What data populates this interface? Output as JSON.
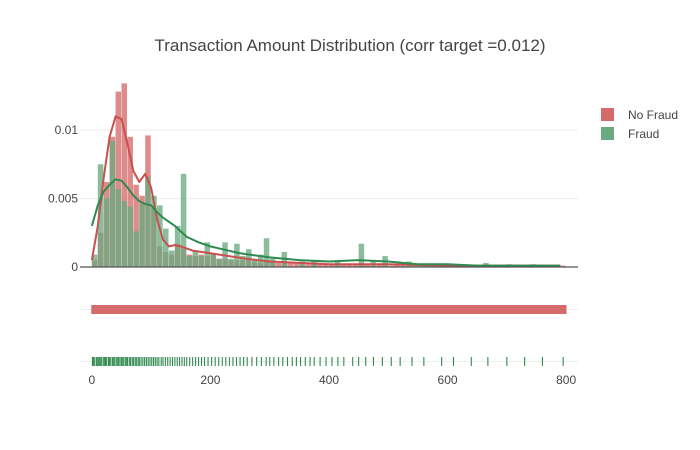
{
  "chart_data": {
    "type": "histogram",
    "title": "Transaction Amount Distribution (corr target =0.012)",
    "xlabel": "",
    "ylabel": "",
    "xlim": [
      -20,
      820
    ],
    "ylim": [
      0,
      0.0135
    ],
    "x_ticks": [
      0,
      200,
      400,
      600,
      800
    ],
    "x_tick_labels": [
      "0",
      "200",
      "400",
      "600",
      "800"
    ],
    "y_ticks": [
      0,
      0.005,
      0.01
    ],
    "y_tick_labels": [
      "0",
      "0.005",
      "0.01"
    ],
    "grid": true,
    "legend_position": "top-right",
    "bin_width": 10,
    "series": [
      {
        "name": "No Fraud",
        "color": "#d46a6a",
        "bins": [
          [
            0,
            0.0005
          ],
          [
            10,
            0.0025
          ],
          [
            20,
            0.0062
          ],
          [
            30,
            0.0095
          ],
          [
            40,
            0.0128
          ],
          [
            50,
            0.0134
          ],
          [
            60,
            0.0095
          ],
          [
            70,
            0.006
          ],
          [
            80,
            0.0052
          ],
          [
            90,
            0.0096
          ],
          [
            100,
            0.0043
          ],
          [
            110,
            0.0015
          ],
          [
            120,
            0.0011
          ],
          [
            130,
            0.0009
          ],
          [
            140,
            0.0017
          ],
          [
            150,
            0.0014
          ],
          [
            160,
            0.0009
          ],
          [
            170,
            0.0008
          ],
          [
            180,
            0.0009
          ],
          [
            190,
            0.0008
          ],
          [
            200,
            0.001
          ],
          [
            210,
            0.0006
          ],
          [
            220,
            0.0006
          ],
          [
            230,
            0.0005
          ],
          [
            240,
            0.0005
          ],
          [
            250,
            0.0005
          ],
          [
            260,
            0.0006
          ],
          [
            270,
            0.0004
          ],
          [
            280,
            0.0003
          ],
          [
            290,
            0.0005
          ],
          [
            300,
            0.0004
          ],
          [
            310,
            0.0003
          ],
          [
            320,
            0.0003
          ],
          [
            330,
            0.0003
          ],
          [
            340,
            0.0003
          ],
          [
            350,
            0.0003
          ],
          [
            360,
            0.0002
          ],
          [
            370,
            0.0002
          ],
          [
            380,
            0.0003
          ],
          [
            390,
            0.0002
          ],
          [
            400,
            0.0002
          ],
          [
            410,
            0.0002
          ],
          [
            420,
            0.0002
          ],
          [
            430,
            0.0002
          ],
          [
            440,
            0.0002
          ],
          [
            450,
            0.0002
          ],
          [
            460,
            0.0002
          ],
          [
            470,
            0.0001
          ],
          [
            480,
            0.0002
          ],
          [
            490,
            0.0002
          ],
          [
            500,
            0.0001
          ],
          [
            510,
            0.0002
          ],
          [
            520,
            0.0001
          ],
          [
            530,
            0.0001
          ],
          [
            540,
            0.0001
          ],
          [
            550,
            0.0001
          ],
          [
            560,
            0.0001
          ],
          [
            570,
            0.0001
          ],
          [
            580,
            0.0001
          ],
          [
            590,
            0.0001
          ],
          [
            600,
            0.0001
          ],
          [
            610,
            0.0001
          ],
          [
            620,
            0.0001
          ],
          [
            630,
            0.0001
          ],
          [
            640,
            0.0001
          ],
          [
            650,
            0.0001
          ],
          [
            660,
            0.0001
          ],
          [
            670,
            0.0001
          ],
          [
            680,
            0.0001
          ],
          [
            690,
            0.0001
          ],
          [
            700,
            0.0001
          ],
          [
            710,
            0.0001
          ],
          [
            720,
            0.0001
          ],
          [
            730,
            0.0001
          ],
          [
            740,
            0.0001
          ],
          [
            750,
            0.0001
          ],
          [
            760,
            0.0001
          ],
          [
            770,
            0.0001
          ],
          [
            780,
            0.0001
          ],
          [
            790,
            0.0001
          ]
        ],
        "kde": [
          [
            0,
            0.0005
          ],
          [
            10,
            0.003
          ],
          [
            20,
            0.0065
          ],
          [
            30,
            0.0095
          ],
          [
            40,
            0.011
          ],
          [
            50,
            0.0108
          ],
          [
            60,
            0.009
          ],
          [
            70,
            0.007
          ],
          [
            80,
            0.0062
          ],
          [
            90,
            0.0068
          ],
          [
            100,
            0.0058
          ],
          [
            110,
            0.0035
          ],
          [
            120,
            0.002
          ],
          [
            130,
            0.0015
          ],
          [
            140,
            0.0016
          ],
          [
            150,
            0.0015
          ],
          [
            170,
            0.0012
          ],
          [
            200,
            0.001
          ],
          [
            230,
            0.0008
          ],
          [
            260,
            0.0006
          ],
          [
            300,
            0.0004
          ],
          [
            350,
            0.0003
          ],
          [
            400,
            0.0002
          ],
          [
            500,
            0.0002
          ],
          [
            600,
            0.0001
          ],
          [
            700,
            0.0001
          ],
          [
            790,
            0.0001
          ]
        ]
      },
      {
        "name": "Fraud",
        "color": "#6aaa80",
        "bins": [
          [
            0,
            0.0009
          ],
          [
            10,
            0.0075
          ],
          [
            20,
            0.005
          ],
          [
            30,
            0.0092
          ],
          [
            40,
            0.0057
          ],
          [
            50,
            0.0048
          ],
          [
            60,
            0.0044
          ],
          [
            70,
            0.0026
          ],
          [
            80,
            0.0046
          ],
          [
            90,
            0.0066
          ],
          [
            100,
            0.0052
          ],
          [
            110,
            0.0045
          ],
          [
            120,
            0.0028
          ],
          [
            130,
            0.0012
          ],
          [
            140,
            0.003
          ],
          [
            150,
            0.0068
          ],
          [
            160,
            0.0008
          ],
          [
            170,
            0.0012
          ],
          [
            180,
            0.0008
          ],
          [
            190,
            0.0018
          ],
          [
            200,
            0.001
          ],
          [
            210,
            0.0006
          ],
          [
            220,
            0.0018
          ],
          [
            230,
            0.0006
          ],
          [
            240,
            0.0017
          ],
          [
            250,
            0.0008
          ],
          [
            260,
            0.0013
          ],
          [
            270,
            0.0006
          ],
          [
            280,
            0.0009
          ],
          [
            290,
            0.0021
          ],
          [
            300,
            0.0006
          ],
          [
            320,
            0.0011
          ],
          [
            350,
            0.0004
          ],
          [
            370,
            0.0004
          ],
          [
            410,
            0.0004
          ],
          [
            450,
            0.0017
          ],
          [
            470,
            0.0004
          ],
          [
            490,
            0.0008
          ],
          [
            530,
            0.0004
          ],
          [
            560,
            0.0002
          ],
          [
            610,
            0.0002
          ],
          [
            660,
            0.0003
          ],
          [
            700,
            0.0002
          ],
          [
            740,
            0.0002
          ],
          [
            780,
            0.0001
          ]
        ],
        "kde": [
          [
            0,
            0.003
          ],
          [
            10,
            0.0045
          ],
          [
            20,
            0.0055
          ],
          [
            30,
            0.006
          ],
          [
            40,
            0.0064
          ],
          [
            50,
            0.0063
          ],
          [
            60,
            0.0058
          ],
          [
            70,
            0.0052
          ],
          [
            80,
            0.0048
          ],
          [
            90,
            0.0046
          ],
          [
            100,
            0.0045
          ],
          [
            110,
            0.004
          ],
          [
            120,
            0.0036
          ],
          [
            140,
            0.003
          ],
          [
            160,
            0.0022
          ],
          [
            180,
            0.0018
          ],
          [
            200,
            0.0015
          ],
          [
            220,
            0.0013
          ],
          [
            250,
            0.001
          ],
          [
            300,
            0.0007
          ],
          [
            350,
            0.0005
          ],
          [
            400,
            0.0004
          ],
          [
            450,
            0.0005
          ],
          [
            500,
            0.0004
          ],
          [
            550,
            0.0002
          ],
          [
            600,
            0.0002
          ],
          [
            650,
            0.0001
          ],
          [
            700,
            0.0001
          ],
          [
            790,
            0.0001
          ]
        ],
        "rug": [
          1,
          3,
          5,
          8,
          10,
          12,
          14,
          16,
          19,
          21,
          23,
          25,
          28,
          30,
          32,
          35,
          37,
          39,
          42,
          44,
          46,
          49,
          51,
          53,
          56,
          58,
          60,
          63,
          65,
          68,
          70,
          73,
          75,
          78,
          80,
          83,
          86,
          89,
          92,
          95,
          98,
          101,
          104,
          107,
          110,
          113,
          117,
          120,
          124,
          128,
          132,
          136,
          140,
          144,
          148,
          152,
          156,
          160,
          165,
          170,
          175,
          180,
          185,
          190,
          196,
          202,
          208,
          214,
          220,
          226,
          232,
          238,
          244,
          250,
          256,
          262,
          270,
          278,
          286,
          294,
          300,
          307,
          315,
          322,
          330,
          338,
          345,
          352,
          360,
          368,
          375,
          385,
          395,
          405,
          415,
          425,
          440,
          450,
          462,
          475,
          490,
          505,
          520,
          540,
          560,
          590,
          610,
          640,
          668,
          700,
          730,
          760,
          795
        ]
      }
    ]
  }
}
